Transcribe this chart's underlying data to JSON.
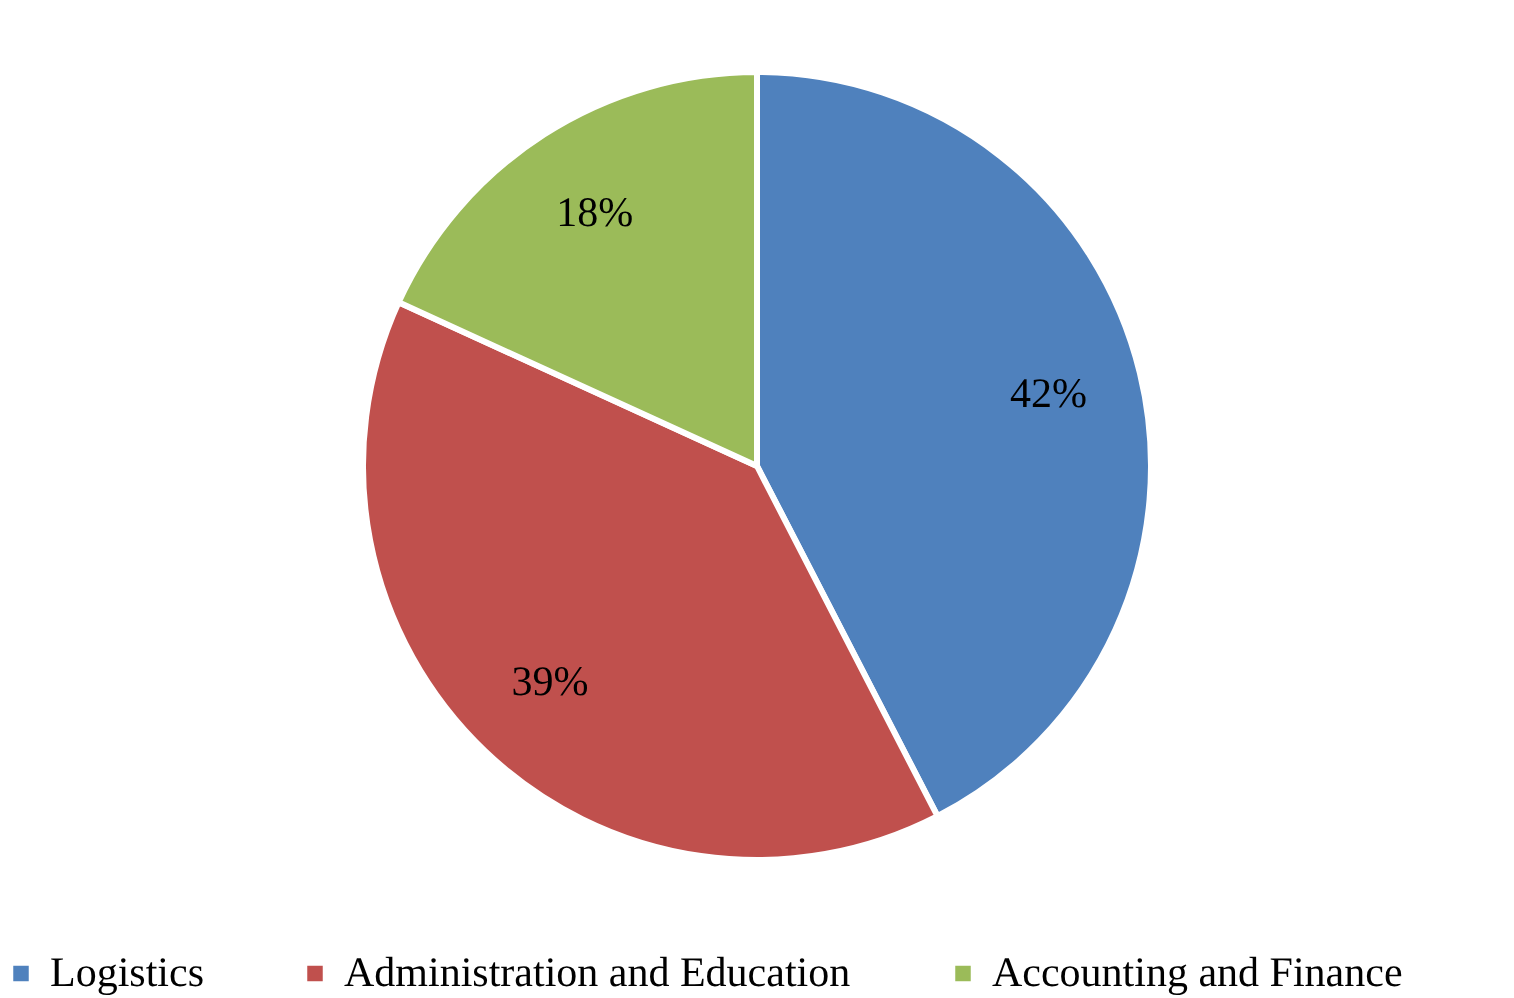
{
  "chart_data": {
    "type": "pie",
    "categories": [
      "Logistics",
      "Administration and Education",
      "Accounting and Finance"
    ],
    "values": [
      42,
      39,
      18
    ],
    "colors": [
      "#4f81bd",
      "#c0504d",
      "#9bbb59"
    ],
    "value_labels": [
      "42%",
      "39%",
      "18%"
    ],
    "legend": "bottom"
  }
}
